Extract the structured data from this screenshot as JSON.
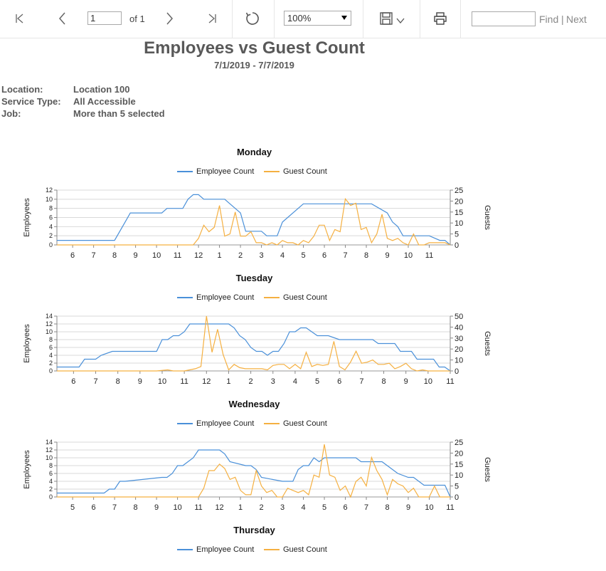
{
  "toolbar": {
    "page_value": "1",
    "of_text": "of 1",
    "zoom_value": "100%",
    "find_label": "Find",
    "separator": "|",
    "next_label": "Next"
  },
  "report": {
    "title": "Employees vs Guest Count",
    "date_range": "7/1/2019 - 7/7/2019",
    "params": [
      {
        "label": "Location:",
        "value": "Location 100"
      },
      {
        "label": "Service Type:",
        "value": "All Accessible"
      },
      {
        "label": "Job:",
        "value": "More than 5 selected"
      }
    ]
  },
  "legend": {
    "employee": "Employee Count",
    "guest": "Guest Count",
    "employee_color": "#4a90d9",
    "guest_color": "#f5b041"
  },
  "chart_data": [
    {
      "type": "line",
      "title": "Monday",
      "ylabel": "Employees",
      "y2label": "Guests",
      "ylim": [
        0,
        12
      ],
      "y2lim": [
        0,
        25
      ],
      "yticks": [
        0,
        2,
        4,
        6,
        8,
        10,
        12
      ],
      "y2ticks": [
        0,
        5,
        10,
        15,
        20,
        25
      ],
      "x_labels": [
        "6",
        "7",
        "8",
        "9",
        "10",
        "11",
        "12",
        "1",
        "2",
        "3",
        "4",
        "5",
        "6",
        "7",
        "8",
        "9",
        "10",
        "11"
      ],
      "x_start": 5.25,
      "x_end": 24,
      "series": [
        {
          "name": "Employee Count",
          "color": "#4a90d9",
          "x": [
            5.25,
            7.5,
            8.0,
            8.5,
            8.75,
            10.25,
            10.5,
            11.25,
            11.5,
            11.75,
            12.0,
            12.25,
            13.25,
            13.5,
            13.75,
            14.0,
            14.25,
            15.0,
            15.25,
            15.75,
            16.0,
            17.0,
            18.25,
            19.0,
            20.25,
            21.0,
            21.25,
            21.5,
            21.75,
            22.0,
            22.75,
            23.0,
            23.5,
            23.75,
            24.0
          ],
          "y": [
            1,
            1,
            1,
            5,
            7,
            7,
            8,
            8,
            10,
            11,
            11,
            10,
            10,
            9,
            8,
            7,
            3,
            3,
            2,
            2,
            5,
            9,
            9,
            9,
            9,
            7,
            5,
            4,
            2,
            2,
            2,
            2,
            1,
            1,
            0
          ]
        },
        {
          "name": "Guest Count",
          "color": "#f5b041",
          "x": [
            5.25,
            11.75,
            12.0,
            12.25,
            12.5,
            12.75,
            13.0,
            13.25,
            13.5,
            13.75,
            14.0,
            14.25,
            14.5,
            14.75,
            15.0,
            15.25,
            15.5,
            15.75,
            16.0,
            16.25,
            16.5,
            16.75,
            17.0,
            17.25,
            17.5,
            17.75,
            18.0,
            18.25,
            18.5,
            18.75,
            19.0,
            19.25,
            19.5,
            19.75,
            20.0,
            20.25,
            20.5,
            20.75,
            21.0,
            21.25,
            21.5,
            21.75,
            22.0,
            22.25,
            22.5,
            22.75,
            23.0,
            23.25,
            23.5,
            23.75,
            24.0
          ],
          "y": [
            0,
            0,
            3,
            9,
            6,
            8,
            18,
            4,
            5,
            15,
            4,
            4,
            6,
            1,
            1,
            0,
            1,
            0,
            2,
            1,
            1,
            0,
            2,
            1,
            4,
            9,
            9,
            2,
            7,
            6,
            21,
            18,
            19,
            7,
            8,
            1,
            5,
            14,
            3,
            2,
            3,
            1,
            0,
            5,
            0,
            0,
            1,
            1,
            1,
            1,
            0
          ]
        }
      ]
    },
    {
      "type": "line",
      "title": "Tuesday",
      "ylabel": "Employees",
      "y2label": "Guests",
      "ylim": [
        0,
        14
      ],
      "y2lim": [
        0,
        50
      ],
      "yticks": [
        0,
        2,
        4,
        6,
        8,
        10,
        12,
        14
      ],
      "y2ticks": [
        0,
        10,
        20,
        30,
        40,
        50
      ],
      "x_labels": [
        "6",
        "7",
        "8",
        "9",
        "10",
        "11",
        "12",
        "1",
        "2",
        "3",
        "4",
        "5",
        "6",
        "7",
        "8",
        "9",
        "10",
        "11"
      ],
      "x_start": 5.25,
      "x_end": 23,
      "series": [
        {
          "name": "Employee Count",
          "color": "#4a90d9",
          "x": [
            5.25,
            6.25,
            6.5,
            7.0,
            7.25,
            7.75,
            8.0,
            9.75,
            10.0,
            10.25,
            10.5,
            10.75,
            11.0,
            11.25,
            11.5,
            12.25,
            13.0,
            13.25,
            13.5,
            13.75,
            14.0,
            14.25,
            14.5,
            14.75,
            15.0,
            15.25,
            15.5,
            15.75,
            16.0,
            16.25,
            16.5,
            17.0,
            17.25,
            17.5,
            18.0,
            18.25,
            19.0,
            19.5,
            19.75,
            20.5,
            20.75,
            21.25,
            21.5,
            22.25,
            22.5,
            22.75,
            23.0
          ],
          "y": [
            1,
            1,
            3,
            3,
            4,
            5,
            5,
            5,
            8,
            8,
            9,
            9,
            10,
            12,
            12,
            12,
            12,
            11,
            9,
            8,
            6,
            5,
            5,
            4,
            5,
            5,
            7,
            10,
            10,
            11,
            11,
            9,
            9,
            9,
            8,
            8,
            8,
            8,
            7,
            7,
            5,
            5,
            3,
            3,
            1,
            1,
            0
          ]
        },
        {
          "name": "Guest Count",
          "color": "#f5b041",
          "x": [
            5.25,
            9.75,
            10.25,
            10.5,
            11.0,
            11.5,
            11.75,
            12.0,
            12.25,
            12.5,
            12.75,
            13.0,
            13.25,
            13.5,
            13.75,
            14.0,
            14.5,
            14.75,
            15.0,
            15.25,
            15.5,
            15.75,
            16.0,
            16.25,
            16.5,
            16.75,
            17.0,
            17.25,
            17.5,
            17.75,
            18.0,
            18.25,
            18.5,
            18.75,
            19.0,
            19.25,
            19.5,
            19.75,
            20.0,
            20.25,
            20.5,
            20.75,
            21.0,
            21.25,
            21.5,
            21.75,
            22.0,
            23.0
          ],
          "y": [
            0,
            0,
            1,
            0,
            0,
            2,
            4,
            50,
            17,
            38,
            15,
            1,
            6,
            3,
            2,
            2,
            2,
            1,
            5,
            6,
            6,
            2,
            6,
            2,
            17,
            4,
            6,
            5,
            6,
            27,
            4,
            1,
            8,
            18,
            7,
            8,
            10,
            6,
            6,
            7,
            2,
            4,
            7,
            2,
            0,
            1,
            0,
            0
          ]
        }
      ]
    },
    {
      "type": "line",
      "title": "Wednesday",
      "ylabel": "Employees",
      "y2label": "Guests",
      "ylim": [
        0,
        14
      ],
      "y2lim": [
        0,
        25
      ],
      "yticks": [
        0,
        2,
        4,
        6,
        8,
        10,
        12,
        14
      ],
      "y2ticks": [
        0,
        5,
        10,
        15,
        20,
        25
      ],
      "x_labels": [
        "5",
        "6",
        "7",
        "8",
        "9",
        "10",
        "11",
        "12",
        "1",
        "2",
        "3",
        "4",
        "5",
        "6",
        "7",
        "8",
        "9",
        "10",
        "11"
      ],
      "x_start": 4.25,
      "x_end": 23,
      "series": [
        {
          "name": "Employee Count",
          "color": "#4a90d9",
          "x": [
            4.25,
            6.25,
            6.5,
            6.75,
            7.0,
            7.25,
            7.5,
            9.25,
            9.5,
            9.75,
            10.0,
            10.25,
            10.5,
            10.75,
            11.0,
            11.25,
            11.75,
            12.0,
            12.25,
            12.5,
            13.25,
            13.5,
            13.75,
            14.0,
            15.0,
            15.25,
            15.5,
            15.75,
            16.0,
            16.25,
            16.5,
            16.75,
            17.0,
            17.5,
            18.5,
            18.75,
            19.0,
            19.75,
            20.25,
            20.5,
            21.0,
            21.25,
            21.5,
            21.75,
            22.25,
            22.75,
            23.0
          ],
          "y": [
            1,
            1,
            1,
            2,
            2,
            4,
            4,
            5,
            5,
            6,
            8,
            8,
            9,
            10,
            12,
            12,
            12,
            12,
            11,
            9,
            8,
            8,
            7,
            5,
            4,
            4,
            4,
            7,
            8,
            8,
            10,
            9,
            10,
            10,
            10,
            9,
            9,
            9,
            7,
            6,
            5,
            5,
            4,
            3,
            3,
            3,
            0
          ]
        },
        {
          "name": "Guest Count",
          "color": "#f5b041",
          "x": [
            4.25,
            10.75,
            11.0,
            11.25,
            11.5,
            11.75,
            12.0,
            12.25,
            12.5,
            12.75,
            13.0,
            13.25,
            13.5,
            13.75,
            14.0,
            14.25,
            14.5,
            14.75,
            15.0,
            15.25,
            15.5,
            15.75,
            16.0,
            16.25,
            16.5,
            16.75,
            17.0,
            17.25,
            17.5,
            17.75,
            18.0,
            18.25,
            18.5,
            18.75,
            19.0,
            19.25,
            19.5,
            19.75,
            20.0,
            20.25,
            20.5,
            20.75,
            21.0,
            21.25,
            21.5,
            21.75,
            22.0,
            22.25,
            22.5,
            22.75,
            23.0
          ],
          "y": [
            0,
            0,
            0,
            4,
            12,
            12,
            15,
            13,
            8,
            9,
            3,
            1,
            1,
            12,
            5,
            2,
            3,
            0,
            0,
            4,
            3,
            2,
            3,
            1,
            10,
            9,
            24,
            10,
            9,
            3,
            5,
            0,
            7,
            9,
            5,
            18,
            12,
            8,
            1,
            8,
            6,
            5,
            2,
            4,
            0,
            0,
            0,
            5,
            0,
            0,
            0
          ]
        }
      ]
    }
  ],
  "partial_chart": {
    "title": "Thursday"
  }
}
